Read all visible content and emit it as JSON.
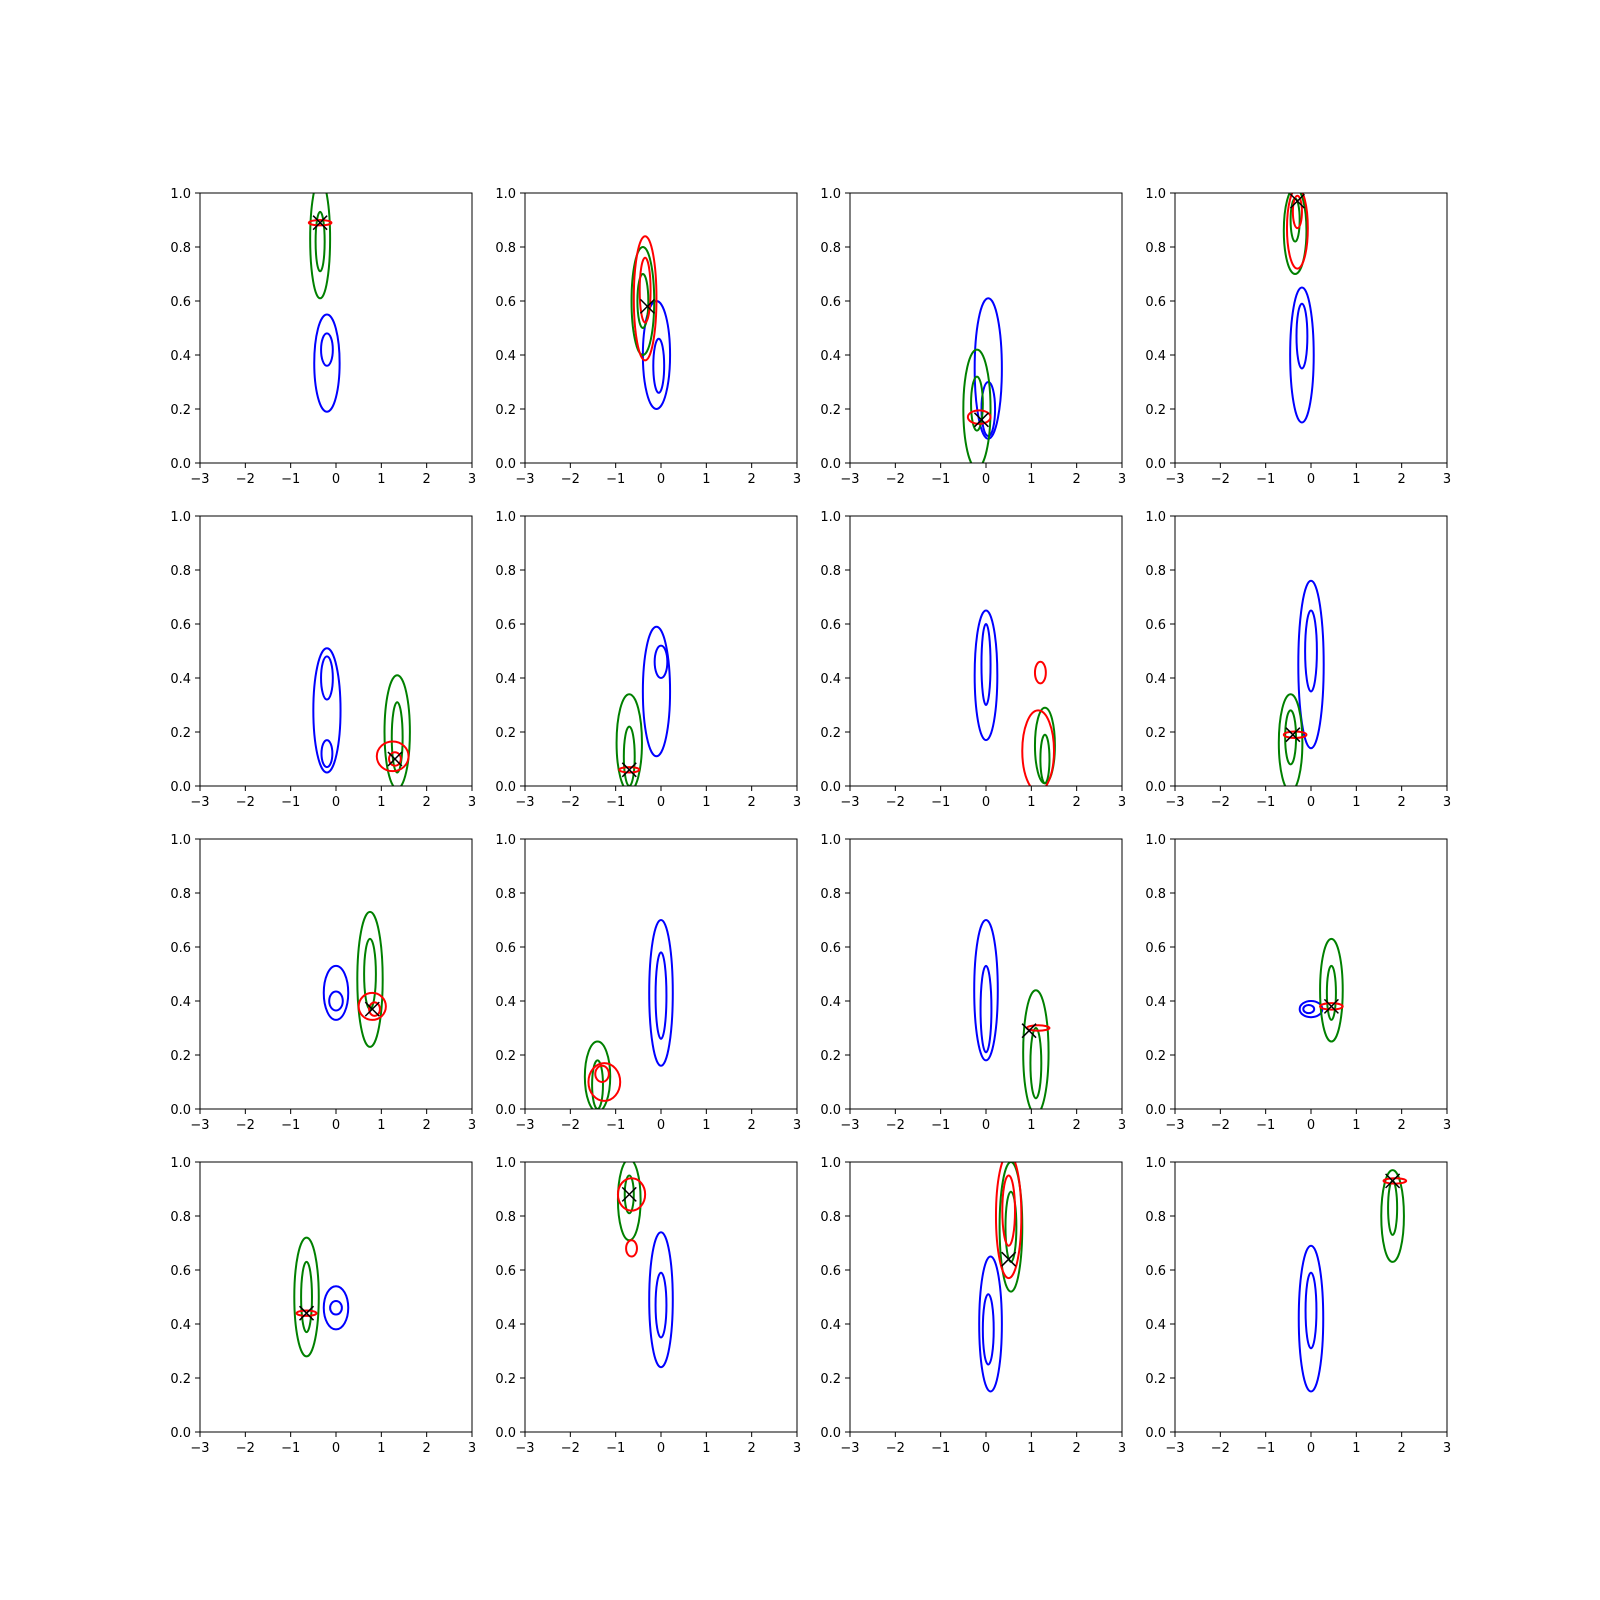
{
  "figure": {
    "rows": 4,
    "cols": 4,
    "background": "#ffffff"
  },
  "colors": {
    "blue": "#0000ff",
    "green": "#008000",
    "red": "#ff0000",
    "marker": "#000000"
  },
  "chart_data": {
    "type": "contour",
    "title": "",
    "xlabel": "",
    "ylabel": "",
    "xlim": [
      -3,
      3
    ],
    "ylim": [
      0,
      1
    ],
    "xticks": [
      "−3",
      "−2",
      "−1",
      "0",
      "1",
      "2",
      "3"
    ],
    "yticks": [
      "0.0",
      "0.2",
      "0.4",
      "0.6",
      "0.8",
      "1.0"
    ],
    "grid": false,
    "legend": "none",
    "panels": [
      {
        "blue": [
          {
            "cx": -0.2,
            "cy": 0.37,
            "rx": 0.28,
            "ry": 0.18
          },
          {
            "cx": -0.2,
            "cy": 0.42,
            "rx": 0.13,
            "ry": 0.06
          }
        ],
        "green": [
          {
            "cx": -0.35,
            "cy": 0.83,
            "rx": 0.22,
            "ry": 0.22
          },
          {
            "cx": -0.35,
            "cy": 0.82,
            "rx": 0.1,
            "ry": 0.11
          }
        ],
        "red": [
          {
            "cx": -0.35,
            "cy": 0.89,
            "rx": 0.25,
            "ry": 0.01
          }
        ],
        "marker": {
          "x": -0.35,
          "y": 0.89
        }
      },
      {
        "blue": [
          {
            "cx": -0.1,
            "cy": 0.4,
            "rx": 0.3,
            "ry": 0.2
          },
          {
            "cx": -0.05,
            "cy": 0.36,
            "rx": 0.12,
            "ry": 0.1
          }
        ],
        "green": [
          {
            "cx": -0.4,
            "cy": 0.6,
            "rx": 0.25,
            "ry": 0.2
          },
          {
            "cx": -0.4,
            "cy": 0.6,
            "rx": 0.12,
            "ry": 0.1
          }
        ],
        "red": [
          {
            "cx": -0.35,
            "cy": 0.61,
            "rx": 0.25,
            "ry": 0.23
          },
          {
            "cx": -0.35,
            "cy": 0.64,
            "rx": 0.12,
            "ry": 0.12
          }
        ],
        "marker": {
          "x": -0.3,
          "y": 0.58
        }
      },
      {
        "blue": [
          {
            "cx": 0.05,
            "cy": 0.35,
            "rx": 0.3,
            "ry": 0.26
          },
          {
            "cx": 0.05,
            "cy": 0.2,
            "rx": 0.15,
            "ry": 0.1
          }
        ],
        "green": [
          {
            "cx": -0.2,
            "cy": 0.2,
            "rx": 0.3,
            "ry": 0.22
          },
          {
            "cx": -0.2,
            "cy": 0.22,
            "rx": 0.13,
            "ry": 0.1
          }
        ],
        "red": [
          {
            "cx": -0.15,
            "cy": 0.17,
            "rx": 0.25,
            "ry": 0.025
          }
        ],
        "marker": {
          "x": -0.1,
          "y": 0.16
        }
      },
      {
        "blue": [
          {
            "cx": -0.2,
            "cy": 0.4,
            "rx": 0.26,
            "ry": 0.25
          },
          {
            "cx": -0.2,
            "cy": 0.47,
            "rx": 0.12,
            "ry": 0.12
          }
        ],
        "green": [
          {
            "cx": -0.35,
            "cy": 0.86,
            "rx": 0.25,
            "ry": 0.16
          },
          {
            "cx": -0.35,
            "cy": 0.9,
            "rx": 0.1,
            "ry": 0.08
          }
        ],
        "red": [
          {
            "cx": -0.3,
            "cy": 0.87,
            "rx": 0.23,
            "ry": 0.15
          },
          {
            "cx": -0.3,
            "cy": 0.93,
            "rx": 0.1,
            "ry": 0.06
          }
        ],
        "marker": {
          "x": -0.3,
          "y": 0.97
        }
      },
      {
        "blue": [
          {
            "cx": -0.2,
            "cy": 0.28,
            "rx": 0.3,
            "ry": 0.23
          },
          {
            "cx": -0.2,
            "cy": 0.4,
            "rx": 0.13,
            "ry": 0.08
          },
          {
            "cx": -0.2,
            "cy": 0.12,
            "rx": 0.12,
            "ry": 0.05
          }
        ],
        "green": [
          {
            "cx": 1.35,
            "cy": 0.2,
            "rx": 0.28,
            "ry": 0.21
          },
          {
            "cx": 1.35,
            "cy": 0.18,
            "rx": 0.12,
            "ry": 0.13
          }
        ],
        "red": [
          {
            "cx": 1.25,
            "cy": 0.11,
            "rx": 0.35,
            "ry": 0.055
          },
          {
            "cx": 1.3,
            "cy": 0.1,
            "rx": 0.13,
            "ry": 0.025
          }
        ],
        "marker": {
          "x": 1.3,
          "y": 0.1
        }
      },
      {
        "blue": [
          {
            "cx": -0.1,
            "cy": 0.35,
            "rx": 0.3,
            "ry": 0.24
          },
          {
            "cx": 0.0,
            "cy": 0.46,
            "rx": 0.14,
            "ry": 0.06
          }
        ],
        "green": [
          {
            "cx": -0.7,
            "cy": 0.16,
            "rx": 0.28,
            "ry": 0.18
          },
          {
            "cx": -0.7,
            "cy": 0.11,
            "rx": 0.12,
            "ry": 0.11
          }
        ],
        "red": [
          {
            "cx": -0.7,
            "cy": 0.06,
            "rx": 0.22,
            "ry": 0.01
          }
        ],
        "marker": {
          "x": -0.7,
          "y": 0.06
        }
      },
      {
        "blue": [
          {
            "cx": 0.0,
            "cy": 0.41,
            "rx": 0.25,
            "ry": 0.24
          },
          {
            "cx": 0.0,
            "cy": 0.45,
            "rx": 0.1,
            "ry": 0.15
          }
        ],
        "green": [
          {
            "cx": 1.3,
            "cy": 0.15,
            "rx": 0.22,
            "ry": 0.14
          },
          {
            "cx": 1.3,
            "cy": 0.1,
            "rx": 0.1,
            "ry": 0.09
          }
        ],
        "red": [
          {
            "cx": 1.15,
            "cy": 0.13,
            "rx": 0.35,
            "ry": 0.15
          },
          {
            "cx": 1.2,
            "cy": 0.42,
            "rx": 0.12,
            "ry": 0.04
          }
        ],
        "marker": null
      },
      {
        "blue": [
          {
            "cx": 0.0,
            "cy": 0.45,
            "rx": 0.28,
            "ry": 0.31
          },
          {
            "cx": 0.0,
            "cy": 0.5,
            "rx": 0.13,
            "ry": 0.15
          }
        ],
        "green": [
          {
            "cx": -0.45,
            "cy": 0.16,
            "rx": 0.26,
            "ry": 0.18
          },
          {
            "cx": -0.45,
            "cy": 0.18,
            "rx": 0.12,
            "ry": 0.1
          }
        ],
        "red": [
          {
            "cx": -0.35,
            "cy": 0.19,
            "rx": 0.25,
            "ry": 0.012
          }
        ],
        "marker": {
          "x": -0.4,
          "y": 0.19
        }
      },
      {
        "blue": [
          {
            "cx": 0.0,
            "cy": 0.43,
            "rx": 0.27,
            "ry": 0.1
          },
          {
            "cx": 0.0,
            "cy": 0.4,
            "rx": 0.15,
            "ry": 0.035
          }
        ],
        "green": [
          {
            "cx": 0.75,
            "cy": 0.48,
            "rx": 0.28,
            "ry": 0.25
          },
          {
            "cx": 0.75,
            "cy": 0.5,
            "rx": 0.13,
            "ry": 0.13
          }
        ],
        "red": [
          {
            "cx": 0.8,
            "cy": 0.38,
            "rx": 0.3,
            "ry": 0.05
          },
          {
            "cx": 0.85,
            "cy": 0.37,
            "rx": 0.12,
            "ry": 0.025
          }
        ],
        "marker": {
          "x": 0.8,
          "y": 0.37
        }
      },
      {
        "blue": [
          {
            "cx": 0.0,
            "cy": 0.43,
            "rx": 0.26,
            "ry": 0.27
          },
          {
            "cx": 0.0,
            "cy": 0.42,
            "rx": 0.12,
            "ry": 0.16
          }
        ],
        "green": [
          {
            "cx": -1.4,
            "cy": 0.12,
            "rx": 0.28,
            "ry": 0.13
          },
          {
            "cx": -1.4,
            "cy": 0.09,
            "rx": 0.12,
            "ry": 0.09
          }
        ],
        "red": [
          {
            "cx": -1.25,
            "cy": 0.1,
            "rx": 0.35,
            "ry": 0.07
          },
          {
            "cx": -1.3,
            "cy": 0.13,
            "rx": 0.15,
            "ry": 0.03
          }
        ],
        "marker": null
      },
      {
        "blue": [
          {
            "cx": 0.0,
            "cy": 0.44,
            "rx": 0.26,
            "ry": 0.26
          },
          {
            "cx": 0.0,
            "cy": 0.37,
            "rx": 0.12,
            "ry": 0.16
          }
        ],
        "green": [
          {
            "cx": 1.1,
            "cy": 0.21,
            "rx": 0.28,
            "ry": 0.23
          },
          {
            "cx": 1.1,
            "cy": 0.17,
            "rx": 0.12,
            "ry": 0.13
          }
        ],
        "red": [
          {
            "cx": 1.15,
            "cy": 0.3,
            "rx": 0.25,
            "ry": 0.01
          }
        ],
        "marker": {
          "x": 0.95,
          "y": 0.29
        }
      },
      {
        "blue": [
          {
            "cx": 0.0,
            "cy": 0.37,
            "rx": 0.25,
            "ry": 0.03
          },
          {
            "cx": -0.05,
            "cy": 0.37,
            "rx": 0.12,
            "ry": 0.015
          }
        ],
        "green": [
          {
            "cx": 0.45,
            "cy": 0.44,
            "rx": 0.25,
            "ry": 0.19
          },
          {
            "cx": 0.45,
            "cy": 0.43,
            "rx": 0.1,
            "ry": 0.1
          }
        ],
        "red": [
          {
            "cx": 0.45,
            "cy": 0.38,
            "rx": 0.25,
            "ry": 0.012
          }
        ],
        "marker": {
          "x": 0.45,
          "y": 0.38
        }
      },
      {
        "blue": [
          {
            "cx": 0.0,
            "cy": 0.46,
            "rx": 0.27,
            "ry": 0.08
          },
          {
            "cx": 0.0,
            "cy": 0.46,
            "rx": 0.13,
            "ry": 0.025
          }
        ],
        "green": [
          {
            "cx": -0.65,
            "cy": 0.5,
            "rx": 0.27,
            "ry": 0.22
          },
          {
            "cx": -0.65,
            "cy": 0.5,
            "rx": 0.12,
            "ry": 0.13
          }
        ],
        "red": [
          {
            "cx": -0.65,
            "cy": 0.44,
            "rx": 0.22,
            "ry": 0.01
          }
        ],
        "marker": {
          "x": -0.65,
          "y": 0.44
        }
      },
      {
        "blue": [
          {
            "cx": 0.0,
            "cy": 0.49,
            "rx": 0.26,
            "ry": 0.25
          },
          {
            "cx": 0.0,
            "cy": 0.47,
            "rx": 0.12,
            "ry": 0.12
          }
        ],
        "green": [
          {
            "cx": -0.7,
            "cy": 0.86,
            "rx": 0.25,
            "ry": 0.15
          },
          {
            "cx": -0.7,
            "cy": 0.88,
            "rx": 0.1,
            "ry": 0.07
          }
        ],
        "red": [
          {
            "cx": -0.65,
            "cy": 0.88,
            "rx": 0.3,
            "ry": 0.06
          },
          {
            "cx": -0.65,
            "cy": 0.68,
            "rx": 0.12,
            "ry": 0.03
          }
        ],
        "marker": {
          "x": -0.7,
          "y": 0.88
        }
      },
      {
        "blue": [
          {
            "cx": 0.1,
            "cy": 0.4,
            "rx": 0.25,
            "ry": 0.25
          },
          {
            "cx": 0.05,
            "cy": 0.38,
            "rx": 0.12,
            "ry": 0.13
          }
        ],
        "green": [
          {
            "cx": 0.55,
            "cy": 0.76,
            "rx": 0.25,
            "ry": 0.24
          },
          {
            "cx": 0.55,
            "cy": 0.76,
            "rx": 0.12,
            "ry": 0.13
          }
        ],
        "red": [
          {
            "cx": 0.5,
            "cy": 0.8,
            "rx": 0.28,
            "ry": 0.23
          },
          {
            "cx": 0.5,
            "cy": 0.82,
            "rx": 0.14,
            "ry": 0.13
          }
        ],
        "marker": {
          "x": 0.5,
          "y": 0.64
        }
      },
      {
        "blue": [
          {
            "cx": 0.0,
            "cy": 0.42,
            "rx": 0.27,
            "ry": 0.27
          },
          {
            "cx": 0.0,
            "cy": 0.45,
            "rx": 0.12,
            "ry": 0.14
          }
        ],
        "green": [
          {
            "cx": 1.8,
            "cy": 0.8,
            "rx": 0.25,
            "ry": 0.17
          },
          {
            "cx": 1.8,
            "cy": 0.83,
            "rx": 0.1,
            "ry": 0.1
          }
        ],
        "red": [
          {
            "cx": 1.85,
            "cy": 0.93,
            "rx": 0.25,
            "ry": 0.01
          }
        ],
        "marker": {
          "x": 1.8,
          "y": 0.93
        }
      }
    ]
  }
}
